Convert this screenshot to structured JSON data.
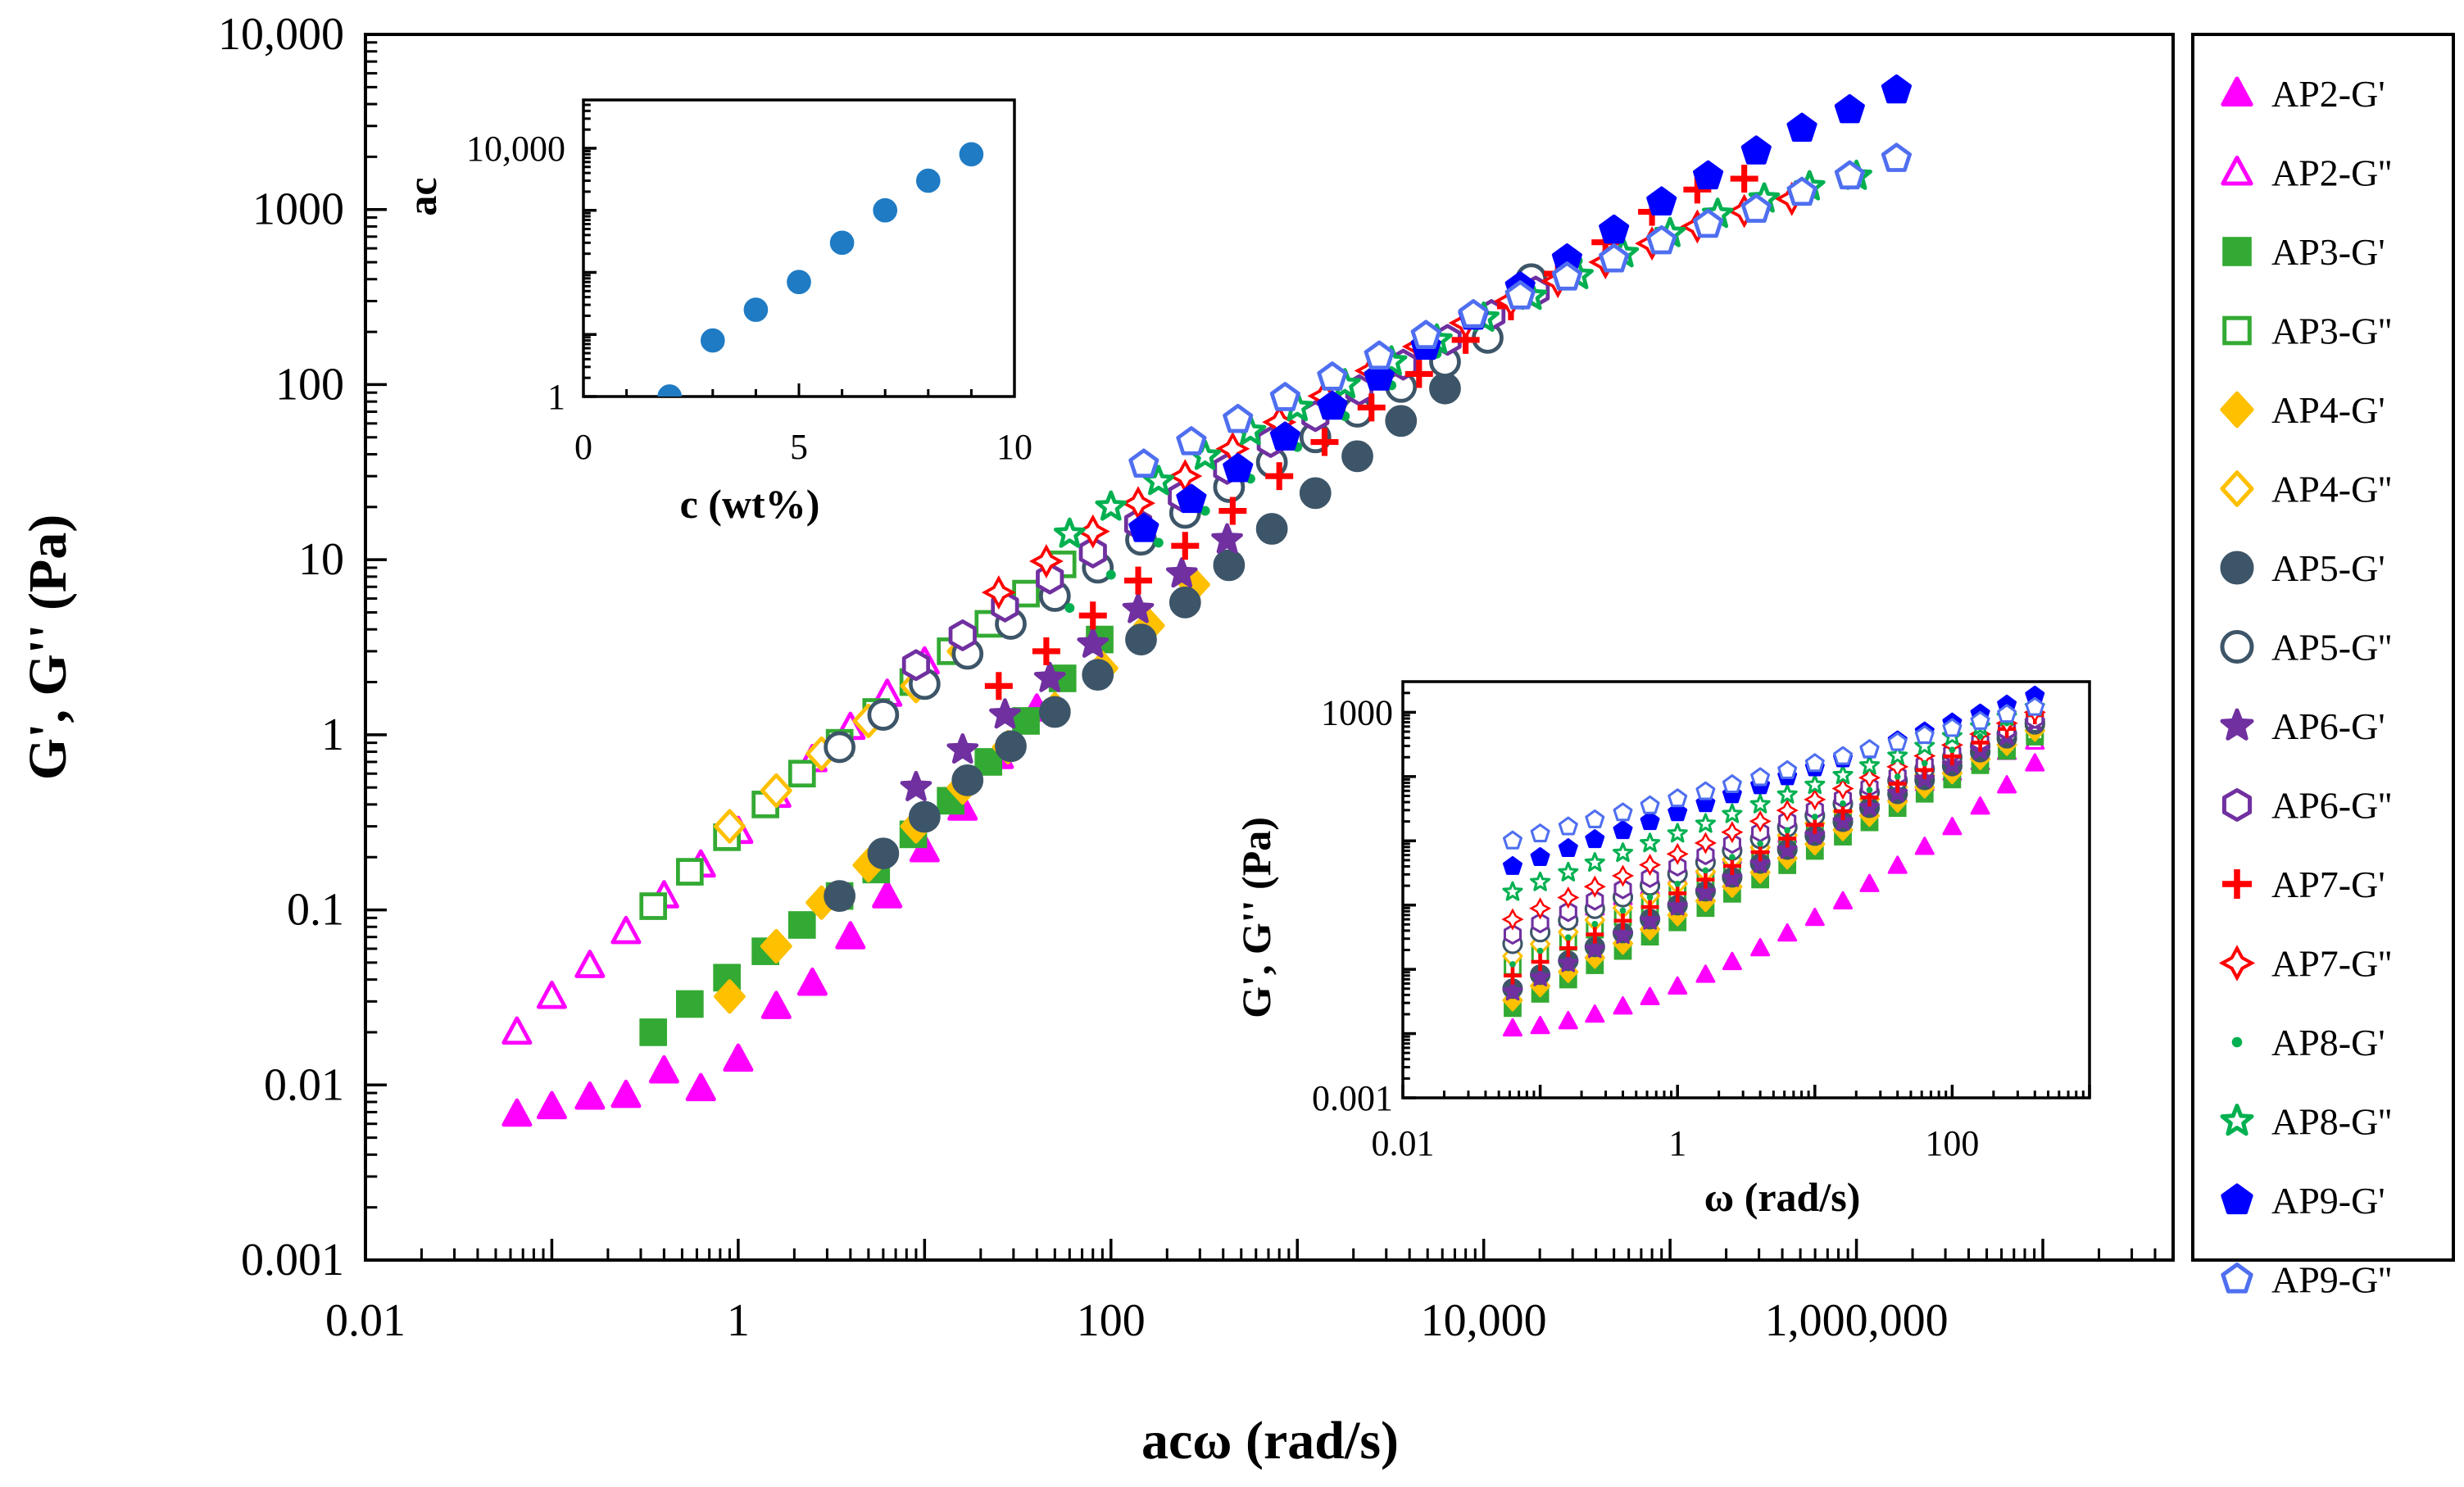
{
  "chart_data": [
    {
      "type": "scatter",
      "xlabel": "acω (rad/s)",
      "ylabel": "G', G'' (Pa)",
      "xscale": "log",
      "yscale": "log",
      "xlim": [
        0.01,
        50000000
      ],
      "ylim": [
        0.001,
        10000
      ],
      "x_ticks": [
        {
          "value": 0.01,
          "label": "0.01"
        },
        {
          "value": 1,
          "label": "1"
        },
        {
          "value": 100,
          "label": "100"
        },
        {
          "value": 10000,
          "label": "10,000"
        },
        {
          "value": 1000000,
          "label": "1,000,000"
        }
      ],
      "y_ticks": [
        {
          "value": 0.001,
          "label": "0.001"
        },
        {
          "value": 0.01,
          "label": "0.01"
        },
        {
          "value": 0.1,
          "label": "0.1"
        },
        {
          "value": 1,
          "label": "1"
        },
        {
          "value": 10,
          "label": "10"
        },
        {
          "value": 100,
          "label": "100"
        },
        {
          "value": 1000,
          "label": "1000"
        },
        {
          "value": 10000,
          "label": "10,000"
        }
      ],
      "grid": false,
      "legend": "right-outside",
      "series": [
        {
          "name": "AP2-G'",
          "color": "#ff00ff",
          "marker": "triangle",
          "filled": true,
          "x": [
            0.065,
            0.1,
            0.16,
            0.25,
            0.4,
            0.63,
            1.0,
            1.6,
            2.5,
            4.0,
            6.3,
            10.0,
            16.0,
            25.0,
            40.0
          ],
          "y": [
            0.0068,
            0.0075,
            0.0085,
            0.0087,
            0.012,
            0.0095,
            0.014,
            0.028,
            0.038,
            0.07,
            0.12,
            0.22,
            0.38,
            0.75,
            1.4
          ]
        },
        {
          "name": "AP2-G''",
          "color": "#ff00ff",
          "marker": "triangle",
          "filled": false,
          "x": [
            0.065,
            0.1,
            0.16,
            0.25,
            0.4,
            0.63,
            1.0,
            1.6,
            2.5,
            4.0,
            6.3,
            10.0
          ],
          "y": [
            0.02,
            0.032,
            0.048,
            0.075,
            0.12,
            0.18,
            0.28,
            0.45,
            0.72,
            1.1,
            1.7,
            2.6
          ]
        },
        {
          "name": "AP3-G'",
          "color": "#33aa33",
          "marker": "square",
          "filled": true,
          "x": [
            0.35,
            0.55,
            0.87,
            1.4,
            2.2,
            3.5,
            5.5,
            8.7,
            13.8,
            22,
            35,
            55,
            87
          ],
          "y": [
            0.02,
            0.029,
            0.041,
            0.058,
            0.082,
            0.12,
            0.17,
            0.27,
            0.42,
            0.7,
            1.2,
            2.1,
            3.5
          ]
        },
        {
          "name": "AP3-G''",
          "color": "#33aa33",
          "marker": "square",
          "filled": false,
          "x": [
            0.35,
            0.55,
            0.87,
            1.4,
            2.2,
            3.5,
            5.5,
            8.7,
            13.8,
            22,
            35,
            55
          ],
          "y": [
            0.105,
            0.165,
            0.26,
            0.4,
            0.6,
            0.9,
            1.35,
            2.0,
            3.0,
            4.3,
            6.4,
            9.4
          ]
        },
        {
          "name": "AP4-G'",
          "color": "#ffc000",
          "marker": "diamond",
          "filled": true,
          "x": [
            0.9,
            1.6,
            2.8,
            5.0,
            9.0,
            16,
            28,
            50,
            90,
            160,
            280
          ],
          "y": [
            0.032,
            0.062,
            0.11,
            0.18,
            0.3,
            0.5,
            0.85,
            1.4,
            2.4,
            4.2,
            7.2
          ]
        },
        {
          "name": "AP4-G''",
          "color": "#ffc000",
          "marker": "diamond",
          "filled": false,
          "x": [
            0.9,
            1.6,
            2.8,
            5.0,
            9.0,
            16
          ],
          "y": [
            0.3,
            0.48,
            0.78,
            1.2,
            1.9,
            3.0
          ]
        },
        {
          "name": "AP5-G'",
          "color": "#3d5568",
          "marker": "circle",
          "filled": true,
          "x": [
            3.5,
            6.0,
            10,
            17,
            29,
            50,
            85,
            145,
            250,
            430,
            730,
            1250,
            2100,
            3600,
            6200
          ],
          "y": [
            0.12,
            0.21,
            0.34,
            0.55,
            0.86,
            1.35,
            2.2,
            3.5,
            5.7,
            9.3,
            15,
            24,
            39,
            62,
            95
          ]
        },
        {
          "name": "AP5-G''",
          "color": "#3d5568",
          "marker": "circle",
          "filled": false,
          "x": [
            3.5,
            6.0,
            10,
            17,
            29,
            50,
            85,
            145,
            250,
            430,
            730,
            1250,
            2100,
            3600,
            6200,
            10500,
            18000
          ],
          "y": [
            0.85,
            1.3,
            1.95,
            2.9,
            4.3,
            6.2,
            9,
            13,
            18.5,
            26,
            36,
            50,
            70,
            97,
            135,
            185,
            400
          ]
        },
        {
          "name": "AP6-G'",
          "color": "#7030a0",
          "marker": "star",
          "filled": true,
          "x": [
            9,
            16,
            27,
            47,
            80,
            140,
            240,
            420
          ],
          "y": [
            0.5,
            0.82,
            1.3,
            2.1,
            3.3,
            5.2,
            8.3,
            13
          ]
        },
        {
          "name": "AP6-G''",
          "color": "#7030a0",
          "marker": "hexagon",
          "filled": false,
          "x": [
            9,
            16,
            27,
            47,
            80,
            140,
            240,
            420,
            720,
            1250,
            2150,
            3700,
            6400,
            11000,
            19000
          ],
          "y": [
            2.5,
            3.7,
            5.4,
            7.8,
            11,
            16,
            23,
            33,
            47,
            66,
            93,
            130,
            180,
            250,
            340
          ]
        },
        {
          "name": "AP7-G'",
          "color": "#ff0000",
          "marker": "plus",
          "filled": true,
          "x": [
            25,
            45,
            80,
            140,
            250,
            450,
            800,
            1400,
            2500,
            4500,
            8000,
            14000,
            25000,
            45000,
            80000,
            140000,
            250000
          ],
          "y": [
            1.9,
            3.0,
            4.8,
            7.6,
            12,
            19,
            30,
            47,
            74,
            115,
            180,
            280,
            430,
            650,
            970,
            1300,
            1500
          ]
        },
        {
          "name": "AP7-G''",
          "color": "#ff0000",
          "marker": "plus",
          "filled": false,
          "x": [
            25,
            45,
            80,
            140,
            250,
            450,
            800,
            1400,
            2500,
            4500,
            8000,
            14000,
            25000,
            45000,
            80000,
            140000,
            250000,
            450000
          ],
          "y": [
            6.5,
            9.8,
            14.5,
            21,
            30,
            43,
            61,
            86,
            120,
            165,
            225,
            300,
            390,
            500,
            640,
            800,
            980,
            1150
          ]
        },
        {
          "name": "AP8-G'",
          "color": "#00b050",
          "marker": "dot",
          "filled": true,
          "x": [
            60,
            100,
            180,
            320,
            560,
            1000,
            1800,
            3200,
            5600,
            10000,
            18000,
            32000
          ],
          "y": [
            5.3,
            8.2,
            12.5,
            19,
            29,
            44,
            66,
            99,
            150,
            225,
            340,
            510
          ]
        },
        {
          "name": "AP8-G''",
          "color": "#00b050",
          "marker": "star",
          "filled": false,
          "x": [
            60,
            100,
            180,
            320,
            560,
            1000,
            1800,
            3200,
            5600,
            10000,
            18000,
            32000,
            56000,
            100000,
            180000,
            320000,
            560000,
            1000000
          ],
          "y": [
            14,
            20,
            28,
            39,
            54,
            74,
            100,
            135,
            180,
            240,
            320,
            420,
            560,
            730,
            940,
            1150,
            1350,
            1550
          ]
        },
        {
          "name": "AP9-G'",
          "color": "#0000ff",
          "marker": "pentagon",
          "filled": true,
          "x": [
            150,
            270,
            480,
            860,
            1540,
            2750,
            4900,
            8800,
            15700,
            28000,
            50000,
            90000,
            160000,
            290000,
            510000,
            920000,
            1640000
          ],
          "y": [
            15,
            22,
            33,
            50,
            75,
            110,
            165,
            245,
            360,
            520,
            760,
            1100,
            1550,
            2150,
            2900,
            3700,
            4800
          ]
        },
        {
          "name": "AP9-G''",
          "color": "#4f6ff0",
          "marker": "pentagon",
          "filled": false,
          "x": [
            150,
            270,
            480,
            860,
            1540,
            2750,
            4900,
            8800,
            15700,
            28000,
            50000,
            90000,
            160000,
            290000,
            510000,
            920000,
            1640000
          ],
          "y": [
            35,
            47,
            63,
            84,
            110,
            145,
            190,
            250,
            320,
            410,
            520,
            660,
            820,
            1000,
            1250,
            1550,
            1950
          ]
        }
      ]
    },
    {
      "type": "scatter",
      "xlabel": "c (wt%)",
      "ylabel": "ac",
      "yscale": "log",
      "xlim": [
        0,
        10
      ],
      "ylim": [
        1,
        60000
      ],
      "x_ticks": [
        {
          "value": 0,
          "label": "0"
        },
        {
          "value": 5,
          "label": "5"
        },
        {
          "value": 10,
          "label": "10"
        }
      ],
      "y_ticks": [
        {
          "value": 1,
          "label": "1"
        },
        {
          "value": 10000,
          "label": "10,000"
        }
      ],
      "series": [
        {
          "color": "#1f7bc4",
          "marker": "circle",
          "filled": true,
          "x": [
            2,
            3,
            4,
            5,
            6,
            7,
            8,
            9
          ],
          "y": [
            1,
            8,
            25,
            70,
            300,
            1000,
            3000,
            8000
          ]
        }
      ]
    },
    {
      "type": "scatter",
      "xlabel": "ω (rad/s)",
      "ylabel": "G', G'' (Pa)",
      "xscale": "log",
      "yscale": "log",
      "xlim": [
        0.01,
        1000
      ],
      "ylim": [
        0.001,
        3000
      ],
      "x_ticks": [
        {
          "value": 0.01,
          "label": "0.01"
        },
        {
          "value": 1,
          "label": "1"
        },
        {
          "value": 100,
          "label": "100"
        }
      ],
      "y_ticks": [
        {
          "value": 0.001,
          "label": "0.001"
        },
        {
          "value": 1000,
          "label": "1000"
        }
      ],
      "series_low_at_0.063": [
        0.012,
        0.3,
        0.025,
        0.11,
        0.033,
        0.16,
        0.05,
        0.25,
        0.045,
        0.35,
        0.08,
        0.6,
        0.12,
        1.6,
        4.0,
        10
      ],
      "series_high_at_400": [
        160,
        350,
        420,
        500,
        520,
        600,
        650,
        700,
        700,
        800,
        900,
        1000,
        1100,
        1200,
        1800,
        1200
      ],
      "x": [
        0.063,
        0.1,
        0.16,
        0.25,
        0.4,
        0.63,
        1.0,
        1.6,
        2.5,
        4.0,
        6.3,
        10,
        16,
        25,
        40,
        63,
        100,
        160,
        250,
        400
      ]
    }
  ]
}
